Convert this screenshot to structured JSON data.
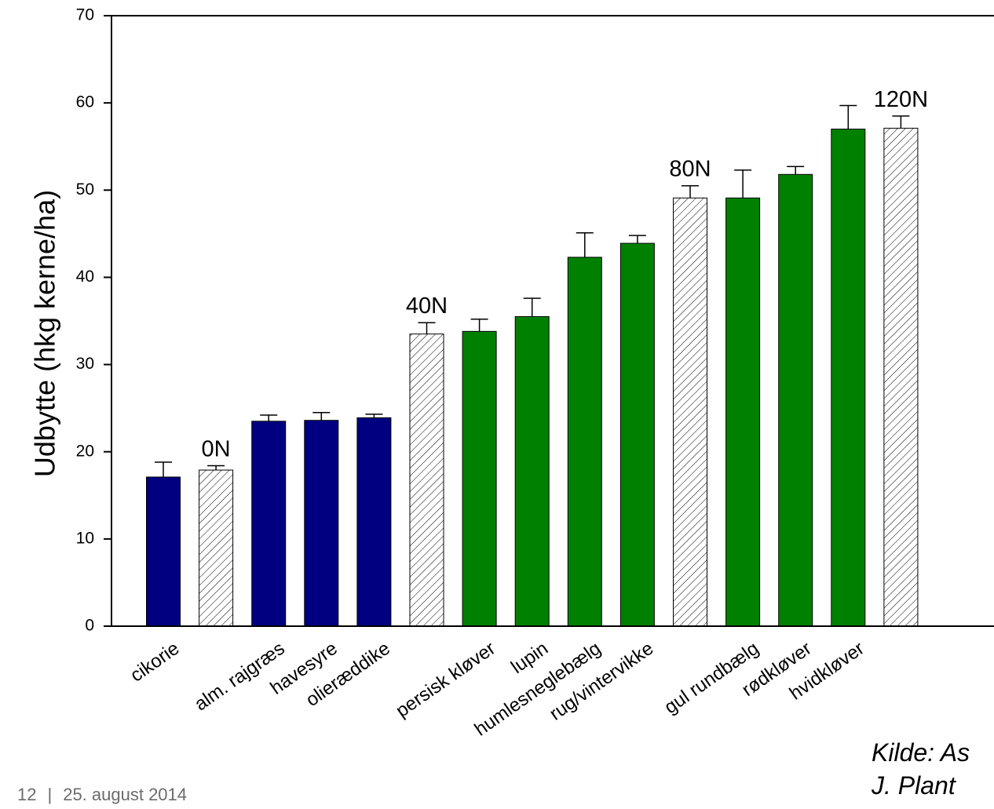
{
  "chart_data": {
    "type": "bar",
    "ylabel": "Udbytte (hkg kerne/ha)",
    "xlabel": "",
    "ylim": [
      0,
      70
    ],
    "yticks": [
      0,
      10,
      20,
      30,
      40,
      50,
      60,
      70
    ],
    "grid": false,
    "colors": {
      "non_legume": "#000080",
      "legume": "#008000",
      "fertilized_reference": "hatched"
    },
    "bars": [
      {
        "label": "cikorie",
        "value": 17.1,
        "error": 1.7,
        "group": "non_legume",
        "annotation": ""
      },
      {
        "label": "",
        "value": 17.9,
        "error": 0.5,
        "group": "fertilized_reference",
        "annotation": "0N"
      },
      {
        "label": "alm. rajgræs",
        "value": 23.5,
        "error": 0.7,
        "group": "non_legume",
        "annotation": ""
      },
      {
        "label": "havesyre",
        "value": 23.6,
        "error": 0.9,
        "group": "non_legume",
        "annotation": ""
      },
      {
        "label": "olieræddike",
        "value": 23.9,
        "error": 0.4,
        "group": "non_legume",
        "annotation": ""
      },
      {
        "label": "",
        "value": 33.5,
        "error": 1.3,
        "group": "fertilized_reference",
        "annotation": "40N"
      },
      {
        "label": "persisk kløver",
        "value": 33.8,
        "error": 1.4,
        "group": "legume",
        "annotation": ""
      },
      {
        "label": "lupin",
        "value": 35.5,
        "error": 2.1,
        "group": "legume",
        "annotation": ""
      },
      {
        "label": "humlesneglebælg",
        "value": 42.3,
        "error": 2.8,
        "group": "legume",
        "annotation": ""
      },
      {
        "label": "rug/vintervikke",
        "value": 43.9,
        "error": 0.9,
        "group": "legume",
        "annotation": ""
      },
      {
        "label": "",
        "value": 49.1,
        "error": 1.4,
        "group": "fertilized_reference",
        "annotation": "80N"
      },
      {
        "label": "gul rundbælg",
        "value": 49.1,
        "error": 3.2,
        "group": "legume",
        "annotation": ""
      },
      {
        "label": "rødkløver",
        "value": 51.8,
        "error": 0.9,
        "group": "legume",
        "annotation": ""
      },
      {
        "label": "hvidkløver",
        "value": 57.0,
        "error": 2.7,
        "group": "legume",
        "annotation": ""
      },
      {
        "label": "",
        "value": 57.1,
        "error": 1.4,
        "group": "fertilized_reference",
        "annotation": "120N"
      }
    ]
  },
  "source": {
    "line1": "Kilde: As",
    "line2": "J. Plant"
  },
  "footer": {
    "page_number": "12",
    "separator": "|",
    "date": "25. august 2014"
  }
}
